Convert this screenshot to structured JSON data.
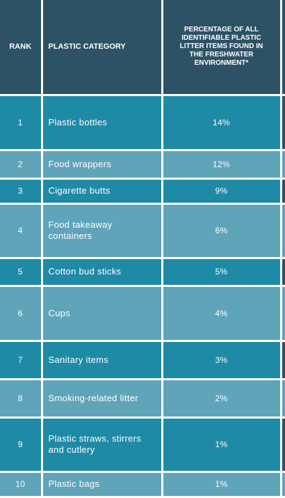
{
  "header": {
    "rank": "RANK",
    "category": "PLASTIC CATEGORY",
    "percentage": "PERCENTAGE OF ALL IDENTIFIABLE PLASTIC LITTER ITEMS FOUND IN THE FRESHWATER ENVIRONMENT*"
  },
  "rows": [
    {
      "rank": "1",
      "category": "Plastic bottles",
      "percentage": "14%"
    },
    {
      "rank": "2",
      "category": "Food wrappers",
      "percentage": "12%"
    },
    {
      "rank": "3",
      "category": "Cigarette butts",
      "percentage": "9%"
    },
    {
      "rank": "4",
      "category": "Food takeaway containers",
      "percentage": "6%"
    },
    {
      "rank": "5",
      "category": "Cotton bud sticks",
      "percentage": "5%"
    },
    {
      "rank": "6",
      "category": "Cups",
      "percentage": "4%"
    },
    {
      "rank": "7",
      "category": "Sanitary items",
      "percentage": "3%"
    },
    {
      "rank": "8",
      "category": "Smoking-related litter",
      "percentage": "2%"
    },
    {
      "rank": "9",
      "category": "Plastic straws, stirrers and cutlery",
      "percentage": "1%"
    },
    {
      "rank": "10",
      "category": "Plastic bags",
      "percentage": "1%"
    }
  ],
  "colors": {
    "header": "#2e5265",
    "row_dark": "#1f8aa6",
    "row_light": "#5fa4b9"
  }
}
